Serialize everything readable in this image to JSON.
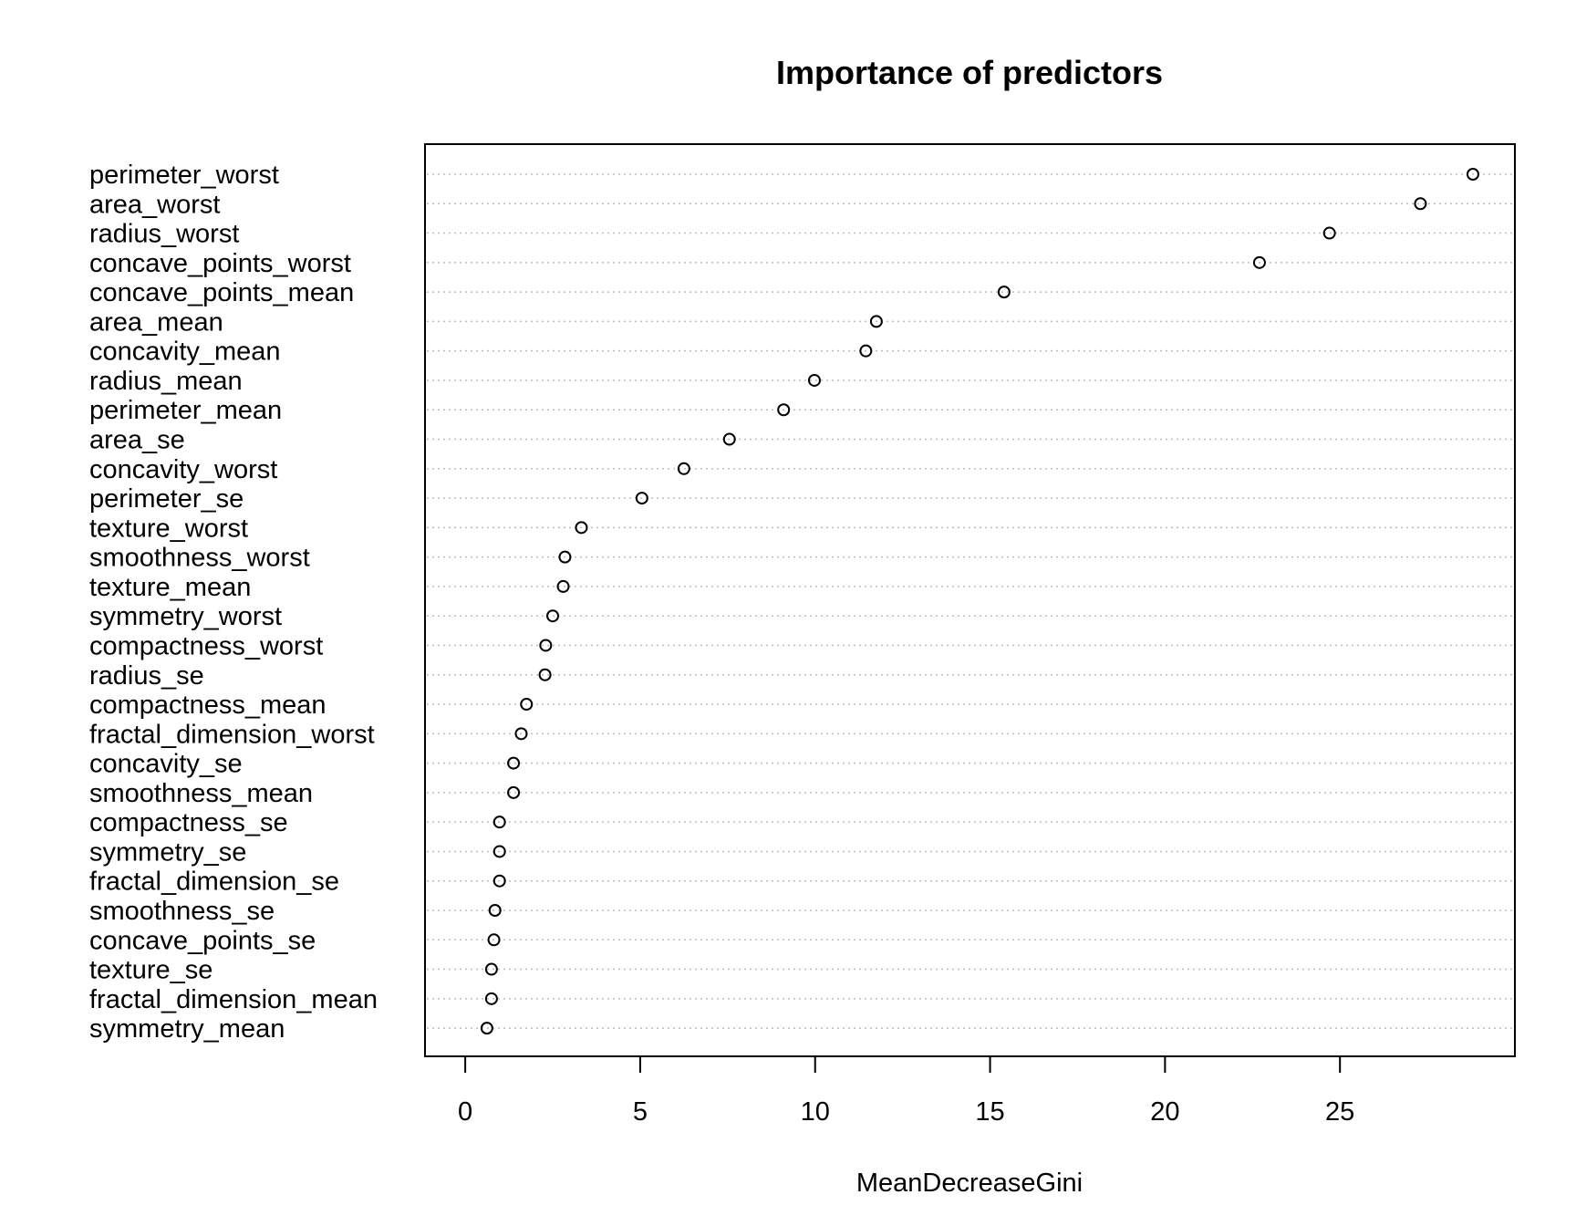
{
  "chart_data": {
    "type": "scatter",
    "variant": "dotchart",
    "title": "Importance of predictors",
    "xlabel": "MeanDecreaseGini",
    "ylabel": "",
    "xlim": [
      -1.15,
      30.0
    ],
    "xticks": [
      0,
      5,
      10,
      15,
      20,
      25
    ],
    "grid": "dotted horizontal lines per category",
    "marker": "open circle",
    "categories": [
      "perimeter_worst",
      "area_worst",
      "radius_worst",
      "concave_points_worst",
      "concave_points_mean",
      "area_mean",
      "concavity_mean",
      "radius_mean",
      "perimeter_mean",
      "area_se",
      "concavity_worst",
      "perimeter_se",
      "texture_worst",
      "smoothness_worst",
      "texture_mean",
      "symmetry_worst",
      "compactness_worst",
      "radius_se",
      "compactness_mean",
      "fractal_dimension_worst",
      "concavity_se",
      "smoothness_mean",
      "compactness_se",
      "symmetry_se",
      "fractal_dimension_se",
      "smoothness_se",
      "concave_points_se",
      "texture_se",
      "fractal_dimension_mean",
      "symmetry_mean"
    ],
    "values": [
      28.8,
      27.3,
      24.7,
      22.7,
      15.4,
      11.75,
      11.45,
      9.98,
      9.1,
      7.55,
      6.25,
      5.05,
      3.32,
      2.85,
      2.8,
      2.5,
      2.3,
      2.28,
      1.75,
      1.6,
      1.38,
      1.38,
      0.98,
      0.98,
      0.98,
      0.85,
      0.82,
      0.75,
      0.75,
      0.62
    ]
  }
}
